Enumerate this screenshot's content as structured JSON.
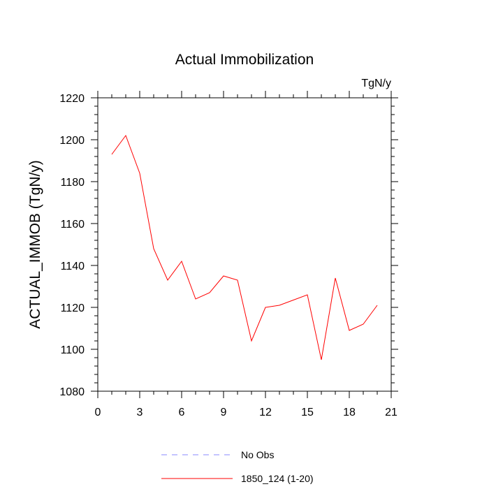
{
  "chart_data": {
    "type": "line",
    "title": "Actual Immobilization",
    "units_label": "TgN/y",
    "ylabel": "ACTUAL_IMMOB  (TgN/y)",
    "xlabel": "",
    "xlim": [
      0,
      21
    ],
    "ylim": [
      1080,
      1220
    ],
    "x_ticks": [
      0,
      3,
      6,
      9,
      12,
      15,
      18,
      21
    ],
    "y_ticks": [
      1080,
      1100,
      1120,
      1140,
      1160,
      1180,
      1200,
      1220
    ],
    "x_minor_step": 1,
    "y_minor_step": 4,
    "grid": false,
    "series": [
      {
        "name": "1850_124 (1-20)",
        "color": "#ff0000",
        "style": "solid",
        "x": [
          1,
          2,
          3,
          4,
          5,
          6,
          7,
          8,
          9,
          10,
          11,
          12,
          13,
          14,
          15,
          16,
          17,
          18,
          19,
          20
        ],
        "values": [
          1193,
          1202,
          1184,
          1148,
          1133,
          1142,
          1124,
          1127,
          1135,
          1133,
          1104,
          1120,
          1121,
          1123.5,
          1126,
          1095,
          1134,
          1109,
          1112,
          1121
        ]
      }
    ],
    "legend": [
      {
        "label": "No Obs",
        "color": "#8888ff",
        "style": "dashed"
      },
      {
        "label": "1850_124 (1-20)",
        "color": "#ff0000",
        "style": "solid"
      }
    ],
    "legend_position": "bottom-center"
  }
}
